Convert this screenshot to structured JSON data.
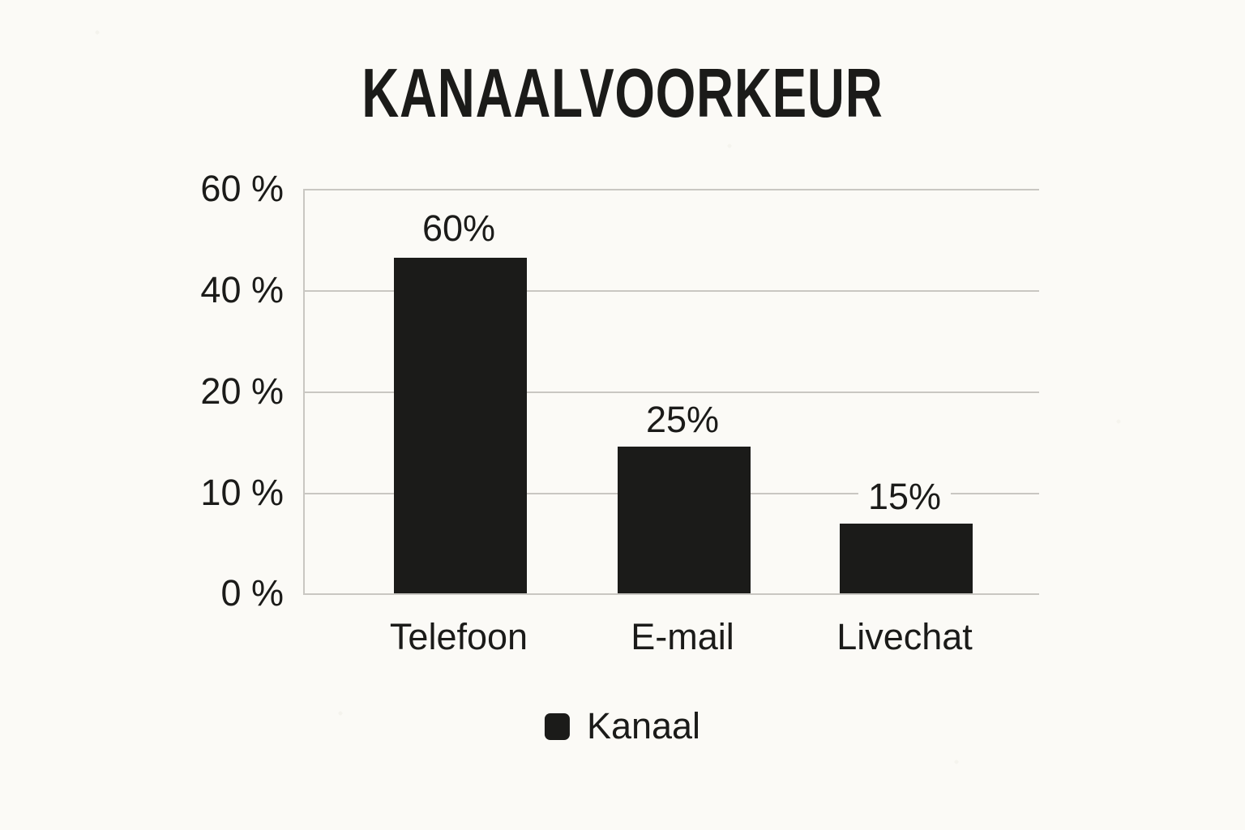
{
  "colors": {
    "background": "#fbfaf6",
    "ink": "#1b1b19",
    "grid": "#c9c7c2"
  },
  "chart_data": {
    "type": "bar",
    "title": "KANAALVOORKEUR",
    "categories": [
      "Telefoon",
      "E-mail",
      "Livechat"
    ],
    "values": [
      60,
      25,
      15
    ],
    "value_labels": [
      "60%",
      "25%",
      "15%"
    ],
    "y_ticks": [
      "60 %",
      "40 %",
      "20 %",
      "10 %",
      "0 %"
    ],
    "xlabel": "",
    "ylabel": "",
    "legend": {
      "label": "Kanaal",
      "position": "bottom-center",
      "swatch_color": "#1b1b19"
    },
    "bar_color": "#1b1b19",
    "layout_hints": {
      "grid": "horizontal gridlines only",
      "y_axis_tick_order_top_to_bottom": [
        "60 %",
        "40 %",
        "20 %",
        "10 %",
        "0 %"
      ],
      "y_axis_ticks_evenly_spaced_despite_nonlinear_values": true,
      "value_labels_above_bars": true
    }
  }
}
